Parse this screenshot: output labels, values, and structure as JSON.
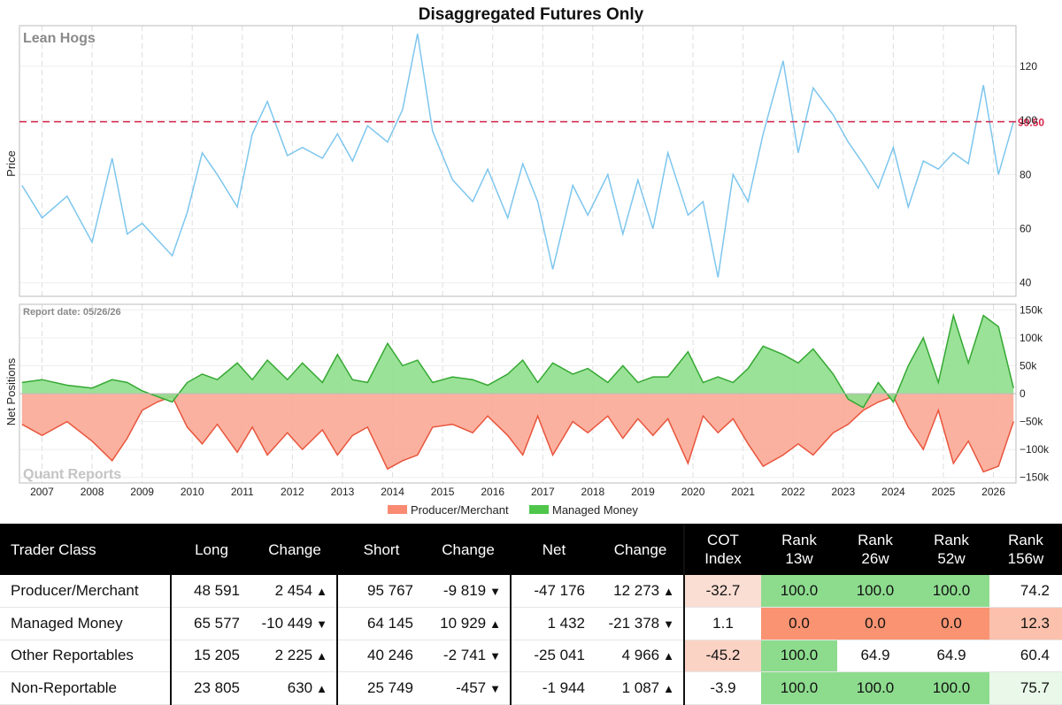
{
  "title": "Disaggregated Futures Only",
  "commodity": "Lean Hogs",
  "watermark": "Quant Reports",
  "report_date_label": "Report date: 05/26/26",
  "price_label": "99.50",
  "price_axis_title": "Price",
  "net_axis_title": "Net Positions",
  "legend": [
    "Producer/Merchant",
    "Managed Money"
  ],
  "colors": {
    "price_line": "#7dc6ee",
    "price_ref_line": "#d6244a",
    "producer": "#fa8a72",
    "producer_fill": "#fba895",
    "managed": "#4fc64a",
    "managed_fill": "#8fdf8c",
    "up": "#2f9e44",
    "down": "#e03131"
  },
  "chart_data": [
    {
      "type": "line",
      "title": "Lean Hogs",
      "ylabel": "Price",
      "ylim": [
        35,
        135
      ],
      "yticks": [
        40,
        60,
        80,
        100,
        120
      ],
      "reference_value": 99.5,
      "x_years": [
        "2007",
        "2008",
        "2009",
        "2010",
        "2011",
        "2012",
        "2013",
        "2014",
        "2015",
        "2016",
        "2017",
        "2018",
        "2019",
        "2020",
        "2021",
        "2022",
        "2023",
        "2024",
        "2025",
        "2026"
      ],
      "x": [
        2006.6,
        2007.0,
        2007.5,
        2008.0,
        2008.4,
        2008.7,
        2009.0,
        2009.3,
        2009.6,
        2009.9,
        2010.2,
        2010.5,
        2010.9,
        2011.2,
        2011.5,
        2011.9,
        2012.2,
        2012.6,
        2012.9,
        2013.2,
        2013.5,
        2013.9,
        2014.2,
        2014.5,
        2014.8,
        2015.2,
        2015.6,
        2015.9,
        2016.3,
        2016.6,
        2016.9,
        2017.2,
        2017.6,
        2017.9,
        2018.3,
        2018.6,
        2018.9,
        2019.2,
        2019.5,
        2019.9,
        2020.2,
        2020.5,
        2020.8,
        2021.1,
        2021.4,
        2021.8,
        2022.1,
        2022.4,
        2022.8,
        2023.1,
        2023.4,
        2023.7,
        2024.0,
        2024.3,
        2024.6,
        2024.9,
        2025.2,
        2025.5,
        2025.8,
        2026.1,
        2026.4
      ],
      "y": [
        76,
        64,
        72,
        55,
        86,
        58,
        62,
        56,
        50,
        66,
        88,
        80,
        68,
        95,
        107,
        87,
        90,
        86,
        95,
        85,
        98,
        92,
        104,
        132,
        96,
        78,
        70,
        82,
        64,
        84,
        70,
        45,
        76,
        65,
        80,
        58,
        78,
        60,
        88,
        65,
        70,
        42,
        80,
        70,
        95,
        122,
        88,
        112,
        102,
        92,
        84,
        75,
        90,
        68,
        85,
        82,
        88,
        84,
        113,
        80,
        99.5
      ]
    },
    {
      "type": "area",
      "title": "Net Positions",
      "ylabel": "Net Positions",
      "ylim": [
        -160000,
        160000
      ],
      "yticks": [
        -150000,
        -100000,
        -50000,
        0,
        50000,
        100000,
        150000
      ],
      "ytick_labels": [
        "−150k",
        "−100k",
        "−50k",
        "0",
        "50k",
        "100k",
        "150k"
      ],
      "x": [
        2006.6,
        2007.0,
        2007.5,
        2008.0,
        2008.4,
        2008.7,
        2009.0,
        2009.3,
        2009.6,
        2009.9,
        2010.2,
        2010.5,
        2010.9,
        2011.2,
        2011.5,
        2011.9,
        2012.2,
        2012.6,
        2012.9,
        2013.2,
        2013.5,
        2013.9,
        2014.2,
        2014.5,
        2014.8,
        2015.2,
        2015.6,
        2015.9,
        2016.3,
        2016.6,
        2016.9,
        2017.2,
        2017.6,
        2017.9,
        2018.3,
        2018.6,
        2018.9,
        2019.2,
        2019.5,
        2019.9,
        2020.2,
        2020.5,
        2020.8,
        2021.1,
        2021.4,
        2021.8,
        2022.1,
        2022.4,
        2022.8,
        2023.1,
        2023.4,
        2023.7,
        2024.0,
        2024.3,
        2024.6,
        2024.9,
        2025.2,
        2025.5,
        2025.8,
        2026.1,
        2026.4
      ],
      "series": [
        {
          "name": "Producer/Merchant",
          "values": [
            -55000,
            -75000,
            -50000,
            -85000,
            -120000,
            -80000,
            -30000,
            -15000,
            -5000,
            -60000,
            -90000,
            -55000,
            -105000,
            -60000,
            -110000,
            -70000,
            -100000,
            -65000,
            -110000,
            -75000,
            -60000,
            -135000,
            -120000,
            -110000,
            -60000,
            -55000,
            -70000,
            -40000,
            -75000,
            -110000,
            -40000,
            -110000,
            -50000,
            -70000,
            -40000,
            -80000,
            -45000,
            -75000,
            -45000,
            -125000,
            -40000,
            -70000,
            -45000,
            -90000,
            -130000,
            -110000,
            -90000,
            -110000,
            -70000,
            -55000,
            -30000,
            -15000,
            -5000,
            -60000,
            -100000,
            -30000,
            -125000,
            -85000,
            -140000,
            -130000,
            -50000
          ]
        },
        {
          "name": "Managed Money",
          "values": [
            20000,
            25000,
            15000,
            10000,
            25000,
            20000,
            5000,
            -5000,
            -15000,
            20000,
            35000,
            25000,
            55000,
            25000,
            60000,
            25000,
            55000,
            20000,
            70000,
            25000,
            20000,
            90000,
            50000,
            60000,
            20000,
            30000,
            25000,
            15000,
            35000,
            60000,
            20000,
            55000,
            35000,
            45000,
            20000,
            50000,
            20000,
            30000,
            30000,
            75000,
            20000,
            30000,
            20000,
            45000,
            85000,
            70000,
            55000,
            80000,
            35000,
            -10000,
            -25000,
            20000,
            -15000,
            50000,
            100000,
            20000,
            140000,
            55000,
            140000,
            120000,
            10000
          ]
        }
      ]
    }
  ],
  "table": {
    "headers": [
      "Trader Class",
      "Long",
      "Change",
      "Short",
      "Change",
      "Net",
      "Change",
      "COT Index",
      "Rank 13w",
      "Rank 26w",
      "Rank 52w",
      "Rank 156w"
    ],
    "rows": [
      {
        "trader": "Producer/Merchant",
        "long": "48 591",
        "long_chg": "2 454",
        "long_dir": "up",
        "short": "95 767",
        "short_chg": "-9 819",
        "short_dir": "down",
        "net": "-47 176",
        "net_chg": "12 273",
        "net_dir": "up",
        "cot": "-32.7",
        "r13": "100.0",
        "r26": "100.0",
        "r52": "100.0",
        "r156": "74.2",
        "bg": {
          "cot": "#fbded3",
          "r13": "#8ddc8e",
          "r26": "#8ddc8e",
          "r52": "#8ddc8e",
          "r156": "#ffffff"
        }
      },
      {
        "trader": "Managed Money",
        "long": "65 577",
        "long_chg": "-10 449",
        "long_dir": "down",
        "short": "64 145",
        "short_chg": "10 929",
        "short_dir": "up",
        "net": "1 432",
        "net_chg": "-21 378",
        "net_dir": "down",
        "cot": "1.1",
        "r13": "0.0",
        "r26": "0.0",
        "r52": "0.0",
        "r156": "12.3",
        "bg": {
          "cot": "#ffffff",
          "r13": "#f99372",
          "r26": "#f99372",
          "r52": "#f99372",
          "r156": "#fbc1ac"
        }
      },
      {
        "trader": "Other Reportables",
        "long": "15 205",
        "long_chg": "2 225",
        "long_dir": "up",
        "short": "40 246",
        "short_chg": "-2 741",
        "short_dir": "down",
        "net": "-25 041",
        "net_chg": "4 966",
        "net_dir": "up",
        "cot": "-45.2",
        "r13": "100.0",
        "r26": "64.9",
        "r52": "64.9",
        "r156": "60.4",
        "bg": {
          "cot": "#fbd3c5",
          "r13": "#8ddc8e",
          "r26": "#ffffff",
          "r52": "#ffffff",
          "r156": "#ffffff"
        }
      },
      {
        "trader": "Non-Reportable",
        "long": "23 805",
        "long_chg": "630",
        "long_dir": "up",
        "short": "25 749",
        "short_chg": "-457",
        "short_dir": "down",
        "net": "-1 944",
        "net_chg": "1 087",
        "net_dir": "up",
        "cot": "-3.9",
        "r13": "100.0",
        "r26": "100.0",
        "r52": "100.0",
        "r156": "75.7",
        "bg": {
          "cot": "#ffffff",
          "r13": "#8ddc8e",
          "r26": "#8ddc8e",
          "r52": "#8ddc8e",
          "r156": "#e9f8e8"
        }
      }
    ]
  }
}
